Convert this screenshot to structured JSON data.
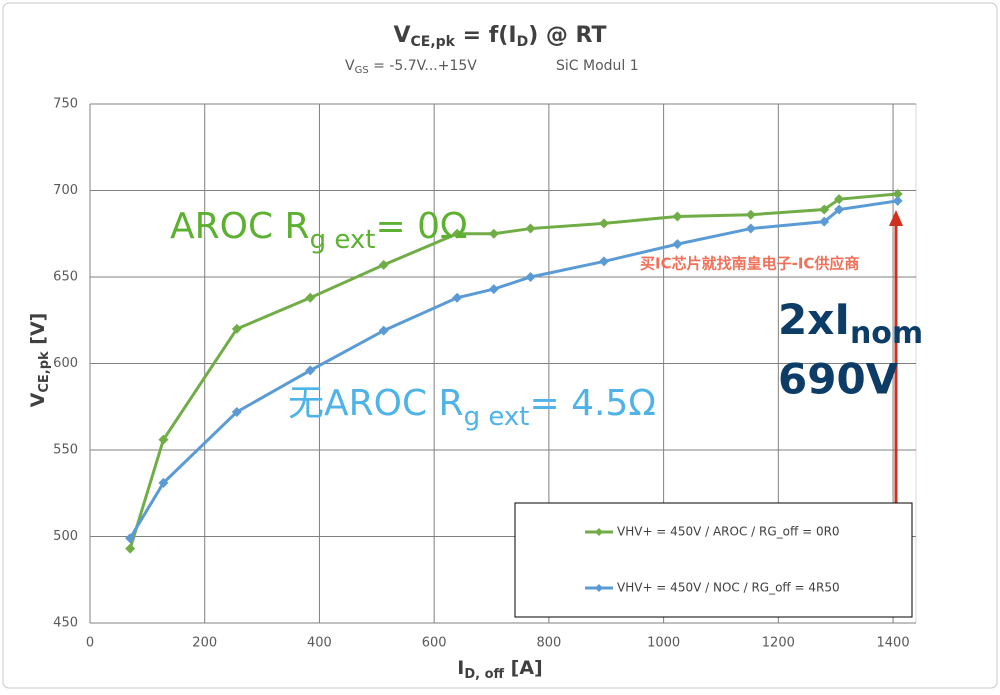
{
  "chart_data": {
    "type": "line",
    "title": [
      "V",
      "CE,pk",
      " = f(I",
      "D",
      ") @ RT"
    ],
    "subtitle": [
      "V",
      "GS",
      " = -5.7V...+15V"
    ],
    "subtitle_right": "SiC Modul 1",
    "x_label": [
      "I",
      "D, off",
      " [A]"
    ],
    "y_label": [
      "V",
      "CE,pk",
      " [V]"
    ],
    "xlim": [
      0,
      1440
    ],
    "ylim": [
      450,
      750
    ],
    "xticks": [
      0,
      200,
      400,
      600,
      800,
      1000,
      1200,
      1400
    ],
    "yticks": [
      450,
      500,
      550,
      600,
      650,
      700,
      750
    ],
    "grid": true,
    "series": [
      {
        "name": "VHV+ = 450V / AROC / RG_off = 0R0",
        "color": "#70ad47",
        "x": [
          70,
          128,
          256,
          384,
          512,
          640,
          704,
          768,
          896,
          1024,
          1152,
          1280,
          1306,
          1408
        ],
        "values": [
          493,
          556,
          620,
          638,
          657,
          675,
          675,
          678,
          681,
          685,
          686,
          689,
          695,
          698
        ]
      },
      {
        "name": "VHV+ = 450V / NOC / RG_off = 4R50",
        "color": "#5b9bd5",
        "x": [
          70,
          128,
          256,
          384,
          512,
          640,
          704,
          768,
          896,
          1024,
          1152,
          1280,
          1306,
          1408
        ],
        "values": [
          499,
          531,
          572,
          596,
          619,
          638,
          643,
          650,
          659,
          669,
          678,
          682,
          689,
          694
        ]
      }
    ],
    "annotations": {
      "green": [
        "AROC R",
        "g ext",
        "= 0Ω"
      ],
      "blue": [
        "无AROC R",
        "g ext",
        "= 4.5Ω"
      ],
      "nominal": [
        "2xI",
        "nom"
      ],
      "voltage": "690V",
      "watermark": "买IC芯片就找南皇电子-IC供应商"
    }
  }
}
